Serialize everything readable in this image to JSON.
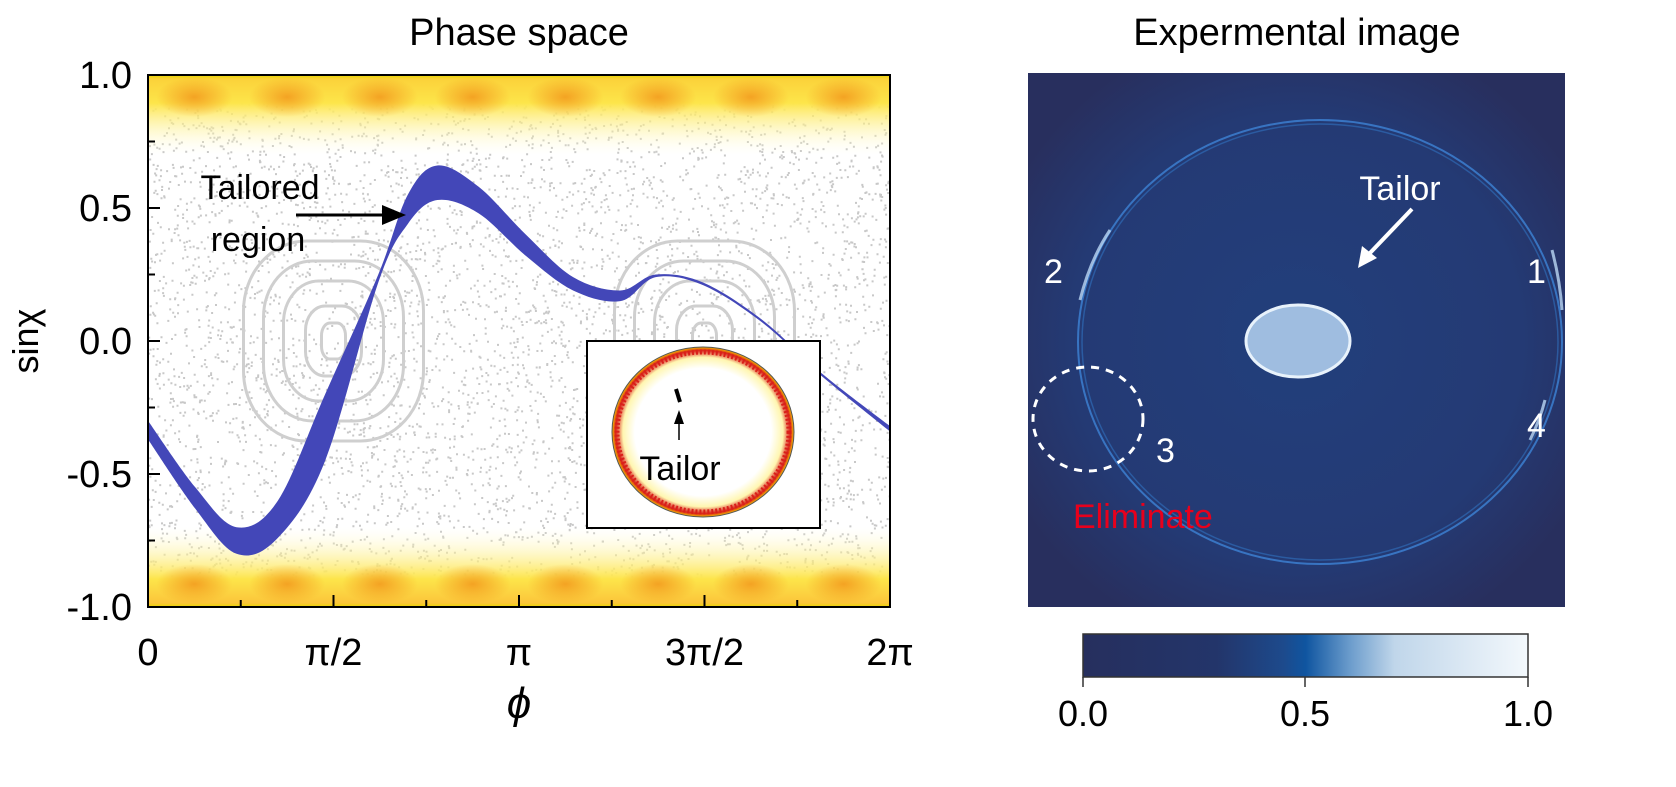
{
  "chart_data": [
    {
      "type": "scatter",
      "title": "Phase space",
      "xlabel": "ϕ",
      "ylabel": "sinχ",
      "xlim": [
        0,
        6.2832
      ],
      "ylim": [
        -1.0,
        1.0
      ],
      "x_ticks": [
        {
          "value": 0,
          "label": "0"
        },
        {
          "value": 1.5708,
          "label": "π/2"
        },
        {
          "value": 3.1416,
          "label": "π"
        },
        {
          "value": 4.7124,
          "label": "3π/2"
        },
        {
          "value": 6.2832,
          "label": "2π"
        }
      ],
      "y_ticks": [
        {
          "value": 1.0,
          "label": "1.0"
        },
        {
          "value": 0.5,
          "label": "0.5"
        },
        {
          "value": 0.0,
          "label": "0.0"
        },
        {
          "value": -0.5,
          "label": "-0.5"
        },
        {
          "value": -1.0,
          "label": "-1.0"
        }
      ],
      "grid": false,
      "tailored_band": {
        "color": "#4347b8",
        "phi": [
          0.0,
          0.4,
          0.75,
          1.1,
          1.5,
          1.95,
          2.2,
          2.45,
          2.8,
          3.2,
          3.6,
          4.0,
          4.3,
          4.7,
          5.2,
          5.7,
          6.2832
        ],
        "upper": [
          -0.3,
          -0.55,
          -0.7,
          -0.6,
          -0.2,
          0.25,
          0.55,
          0.66,
          0.58,
          0.4,
          0.24,
          0.19,
          0.25,
          0.22,
          0.08,
          -0.12,
          -0.32
        ],
        "lower": [
          -0.37,
          -0.63,
          -0.8,
          -0.74,
          -0.45,
          0.22,
          0.44,
          0.53,
          0.48,
          0.32,
          0.19,
          0.15,
          0.24,
          0.21,
          0.07,
          -0.13,
          -0.34
        ]
      },
      "annotations": [
        {
          "text_line1": "Tailored",
          "text_line2": "region"
        }
      ],
      "inset": {
        "label": "Tailor"
      },
      "colors": {
        "band": "#4347b8",
        "dots": "#c8c8c8",
        "high_density": "#f5a623",
        "mid_density": "#f8e71c"
      }
    },
    {
      "type": "heatmap",
      "title": "Expermental image",
      "labels": {
        "tailor": "Tailor",
        "eliminate": "Eliminate",
        "n1": "1",
        "n2": "2",
        "n3": "3",
        "n4": "4"
      },
      "colorbar": {
        "range": [
          0.0,
          1.0
        ],
        "ticks": [
          "0.0",
          "0.5",
          "1.0"
        ],
        "colors": [
          "#262f5e",
          "#1e4a8f",
          "#0e54a0",
          "#aecbe6",
          "#f3f8fc"
        ]
      },
      "colors": {
        "eliminate": "#e8001c",
        "background": "#263161"
      }
    }
  ]
}
